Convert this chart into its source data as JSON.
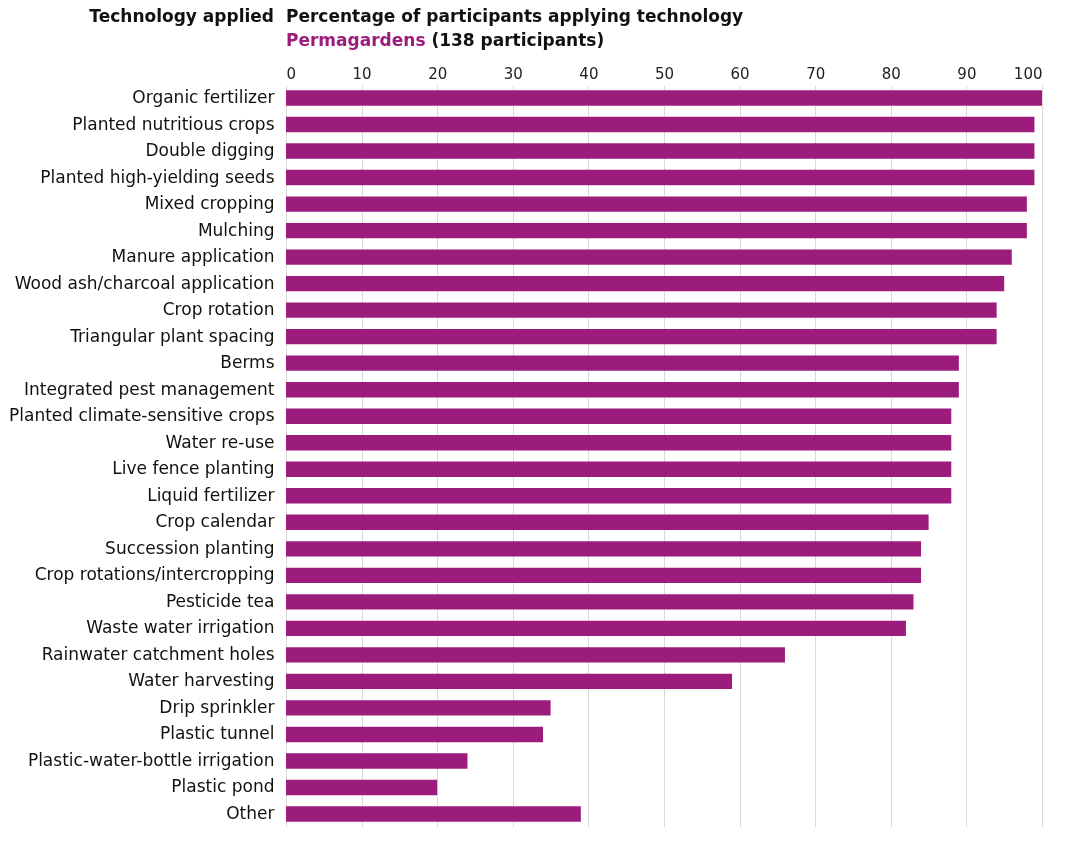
{
  "chart_data": {
    "type": "bar",
    "orientation": "horizontal",
    "title": "Percentage of participants applying technology",
    "ylabel": "Technology applied",
    "annotations": [
      "(138 participants)"
    ],
    "categories": [
      "Organic fertilizer",
      "Planted nutritious crops",
      "Double digging",
      "Planted high-yielding seeds",
      "Mixed cropping",
      "Mulching",
      "Manure application",
      "Wood ash/charcoal application",
      "Crop rotation",
      "Triangular plant spacing",
      "Berms",
      "Integrated pest management",
      "Planted climate-sensitive crops",
      "Water re-use",
      "Live fence planting",
      "Liquid fertilizer",
      "Crop calendar",
      "Succession planting",
      "Crop rotations/intercropping",
      "Pesticide tea",
      "Waste water irrigation",
      "Rainwater catchment holes",
      "Water harvesting",
      "Drip sprinkler",
      "Plastic tunnel",
      "Plastic-water-bottle irrigation",
      "Plastic pond",
      "Other"
    ],
    "series": [
      {
        "name": "Permagardens",
        "color": "#9c1c7d",
        "values": [
          100,
          99,
          99,
          99,
          98,
          98,
          96,
          95,
          94,
          94,
          89,
          89,
          88,
          88,
          88,
          88,
          85,
          84,
          84,
          83,
          82,
          66,
          59,
          35,
          34,
          24,
          20,
          39
        ]
      }
    ],
    "xlim": [
      0,
      100
    ],
    "xticks": [
      0,
      10,
      20,
      30,
      40,
      50,
      60,
      70,
      80,
      90,
      100
    ],
    "grid": "x"
  }
}
